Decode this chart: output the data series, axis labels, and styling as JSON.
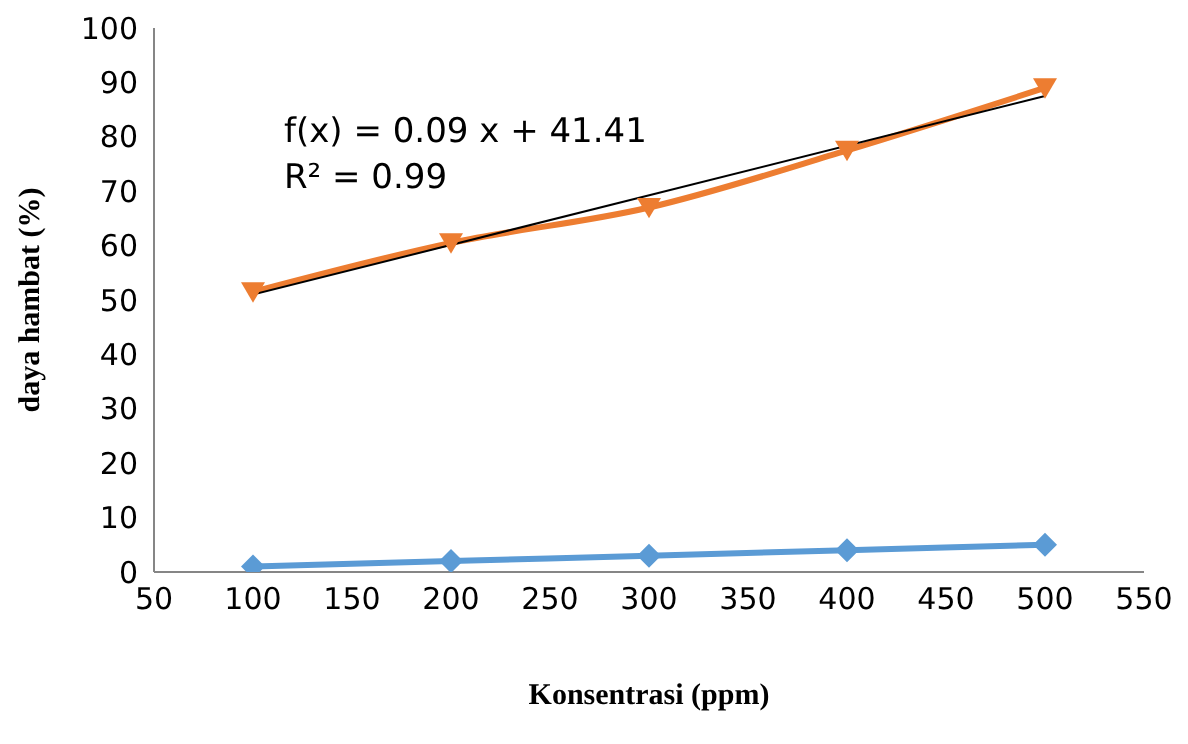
{
  "chart_data": {
    "type": "line",
    "xlabel": "Konsentrasi (ppm)",
    "ylabel": "daya hambat (%)",
    "x": [
      100,
      200,
      300,
      400,
      500
    ],
    "series": [
      {
        "color": "#5b9bd5",
        "values": [
          1,
          2,
          3,
          4,
          5
        ],
        "marker": "diamond"
      },
      {
        "color": "#ed7d31",
        "values": [
          51.5,
          60.5,
          67,
          77.5,
          89
        ],
        "marker": "triangle"
      },
      {
        "type": "line",
        "color": "#000000",
        "x": [
          100,
          500
        ],
        "values": [
          51,
          87.5
        ],
        "marker": "none"
      }
    ],
    "annotations": [
      "f(x) = 0.09 x + 41.41",
      "R² = 0.99"
    ],
    "xlim": [
      50,
      550
    ],
    "xticks": [
      50,
      100,
      150,
      200,
      250,
      300,
      350,
      400,
      450,
      500,
      550
    ],
    "ylim": [
      0,
      100
    ],
    "yticks": [
      0,
      10,
      20,
      30,
      40,
      50,
      60,
      70,
      80,
      90,
      100
    ],
    "grid": false,
    "legend": false
  }
}
